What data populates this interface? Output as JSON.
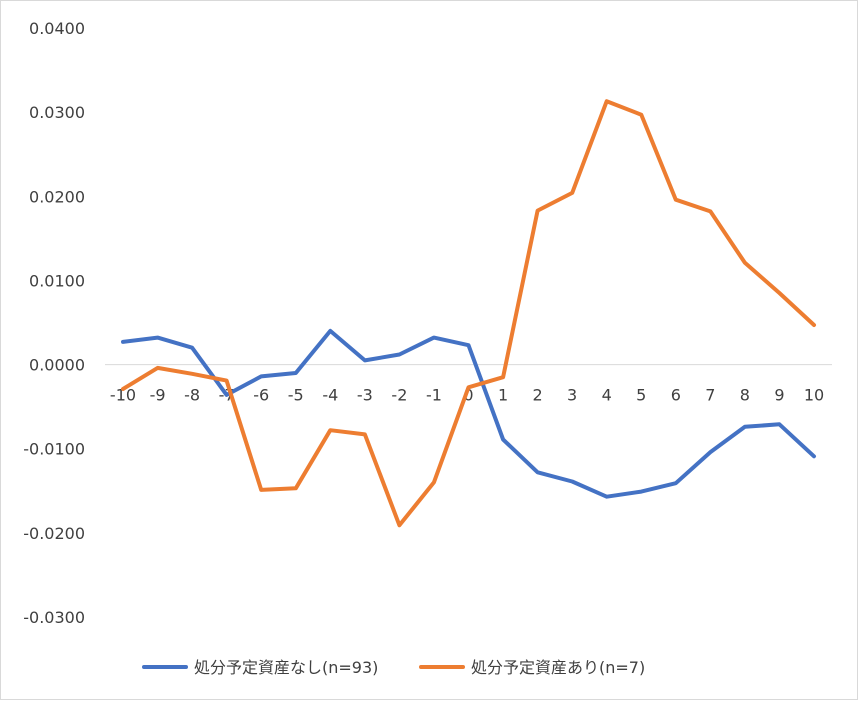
{
  "chart_data": {
    "type": "line",
    "x": [
      -10,
      -9,
      -8,
      -7,
      -6,
      -5,
      -4,
      -3,
      -2,
      -1,
      0,
      1,
      2,
      3,
      4,
      5,
      6,
      7,
      8,
      9,
      10
    ],
    "x_tick_labels": [
      "-10",
      "-9",
      "-8",
      "-7",
      "-6",
      "-5",
      "-4",
      "-3",
      "-2",
      "-1",
      "0",
      "1",
      "2",
      "3",
      "4",
      "5",
      "6",
      "7",
      "8",
      "9",
      "10"
    ],
    "ylim": [
      -0.03,
      0.04
    ],
    "y_ticks": [
      0.04,
      0.03,
      0.02,
      0.01,
      0,
      -0.01,
      -0.02,
      -0.03
    ],
    "y_tick_labels": [
      "0.0400",
      "0.0300",
      "0.0200",
      "0.0100",
      "0.0000",
      "-0.0100",
      "-0.0200",
      "-0.0300"
    ],
    "grid": false,
    "legend_position": "bottom",
    "series": [
      {
        "name": "処分予定資産なし(n=93)",
        "color": "#4472c4",
        "values": [
          0.0027,
          0.0032,
          0.002,
          -0.0036,
          -0.0014,
          -0.001,
          0.004,
          0.0005,
          0.0012,
          0.0032,
          0.0023,
          -0.0089,
          -0.0128,
          -0.0139,
          -0.0157,
          -0.0151,
          -0.0141,
          -0.0104,
          -0.0074,
          -0.0071,
          -0.0109
        ]
      },
      {
        "name": "処分予定資産あり(n=7)",
        "color": "#ed7d31",
        "values": [
          -0.0029,
          -0.0004,
          -0.0011,
          -0.0019,
          -0.0149,
          -0.0147,
          -0.0078,
          -0.0083,
          -0.0191,
          -0.014,
          -0.0027,
          -0.0015,
          0.0183,
          0.0204,
          0.0313,
          0.0297,
          0.0196,
          0.0182,
          0.0121,
          0.0085,
          0.0047
        ]
      }
    ]
  }
}
